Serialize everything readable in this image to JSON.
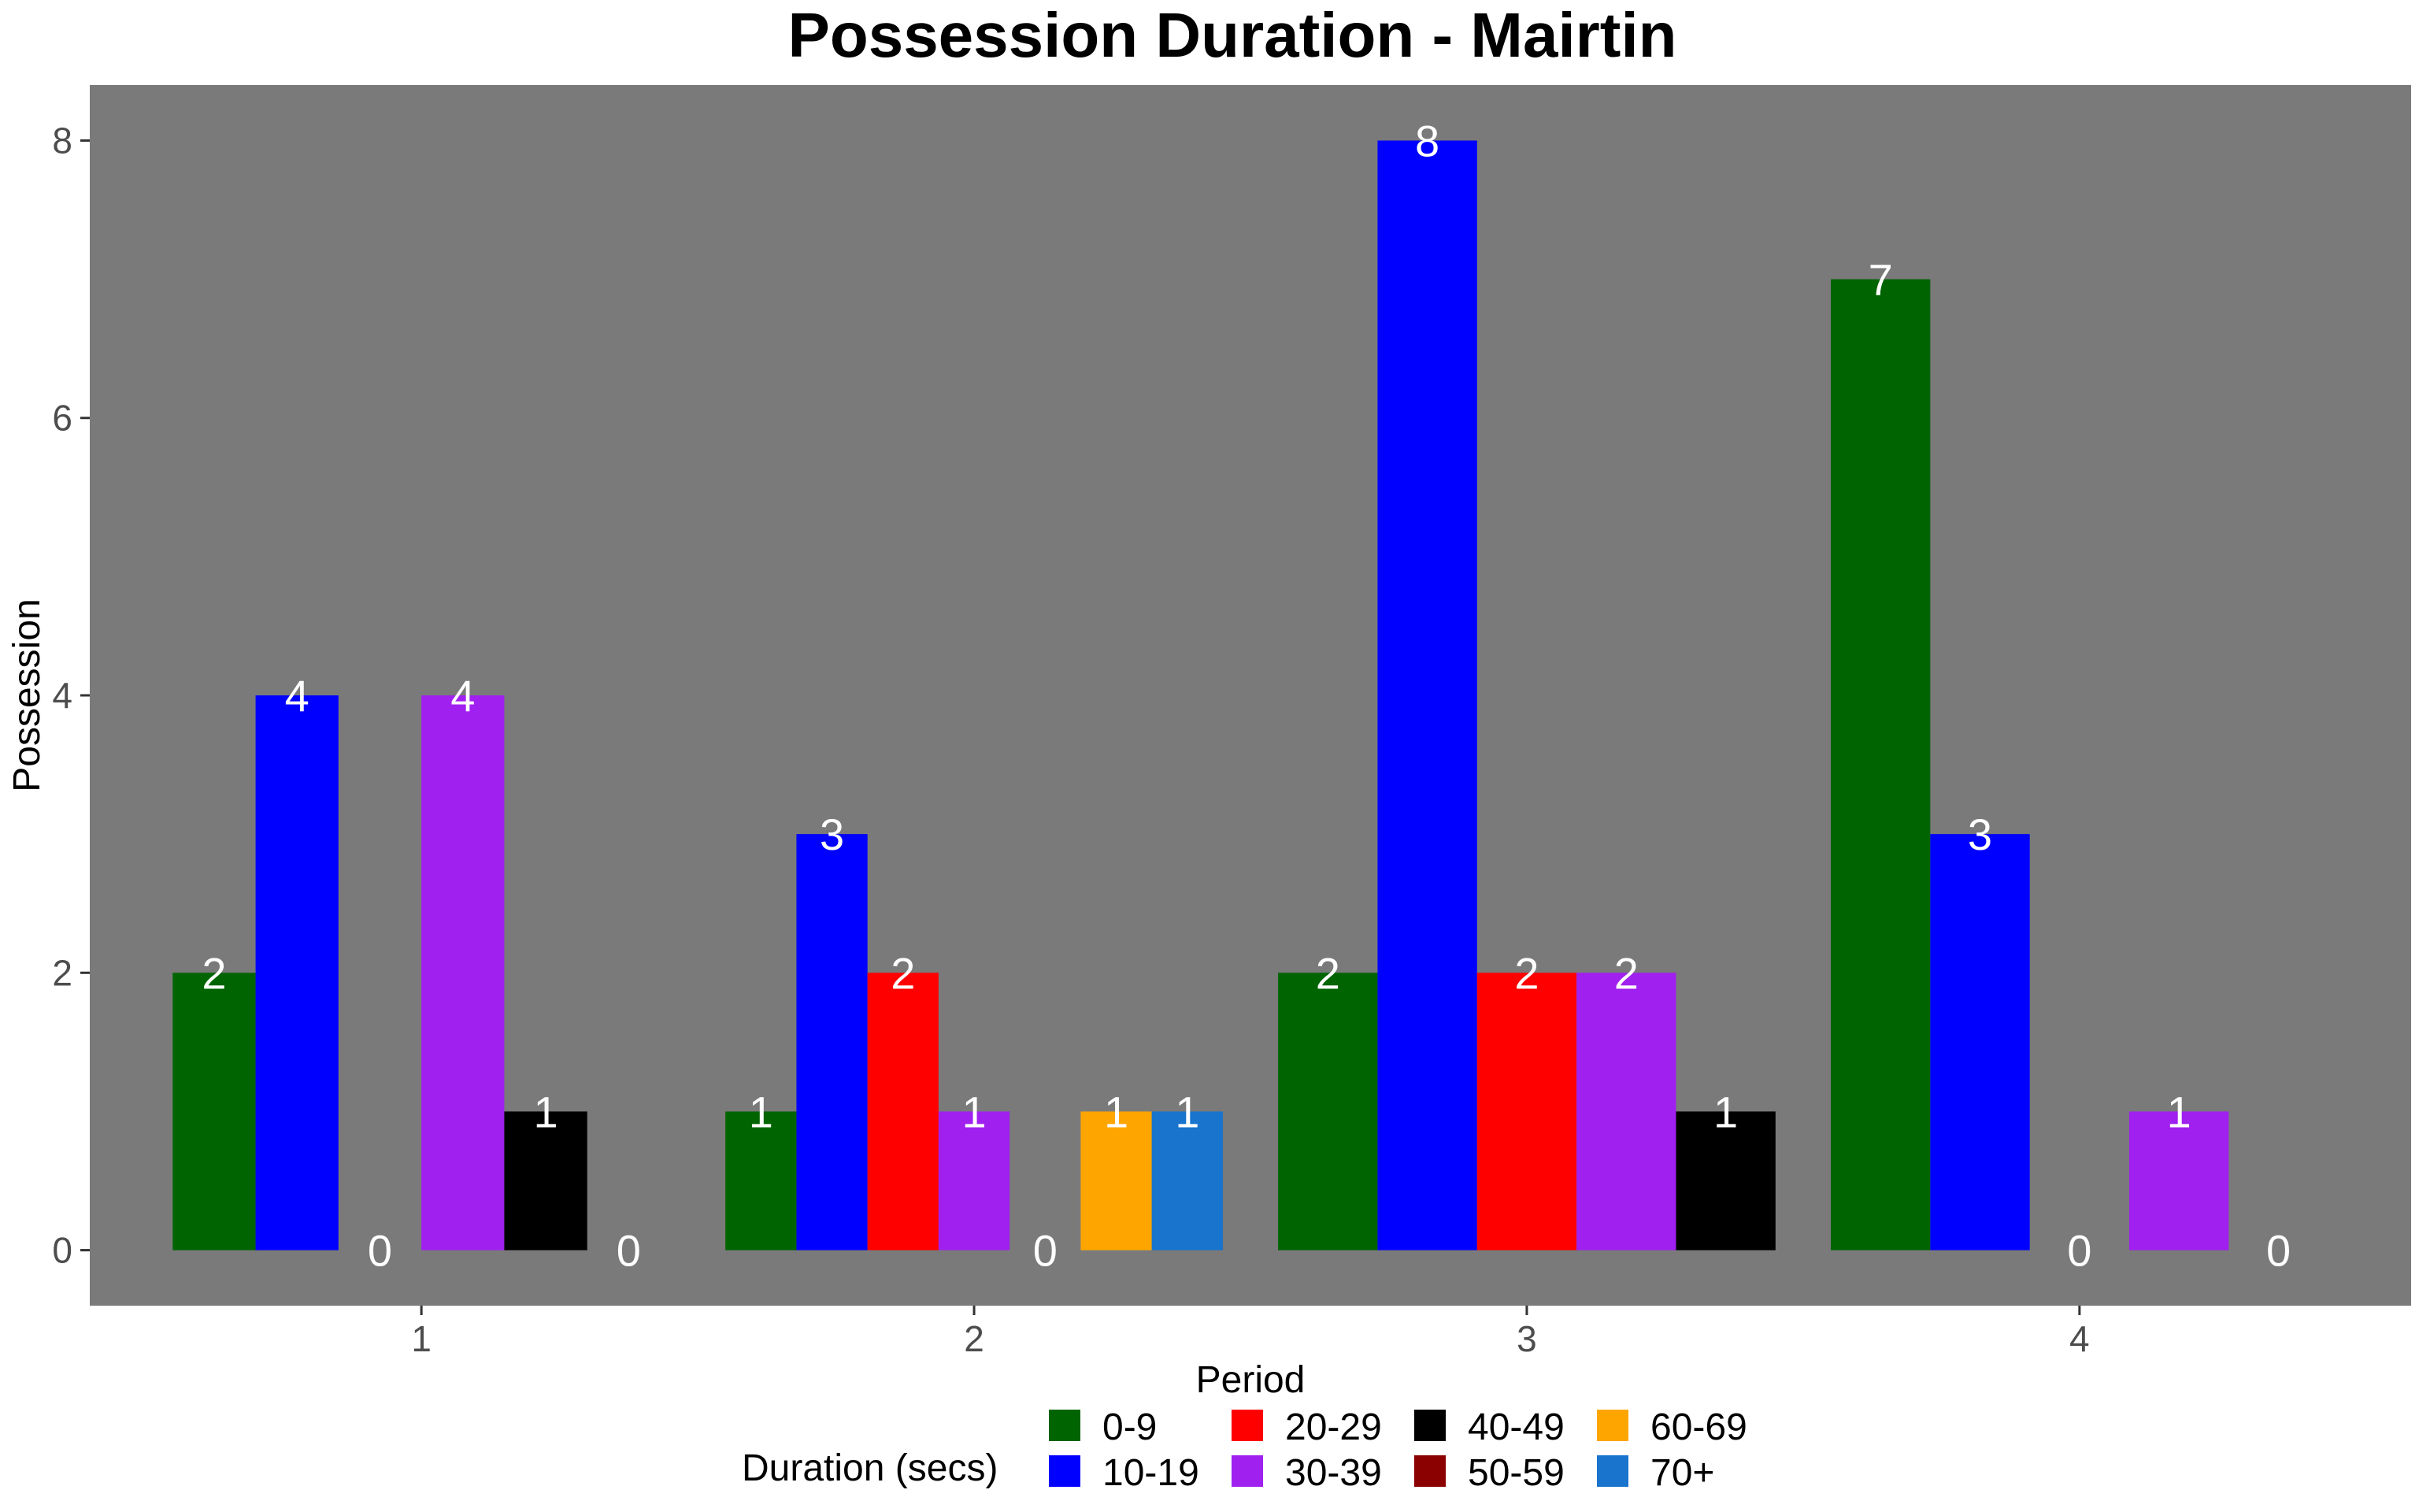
{
  "chart_data": {
    "type": "bar",
    "title": "Possession Duration - Mairtin",
    "xlabel": "Period",
    "ylabel": "Possession",
    "categories": [
      "1",
      "2",
      "3",
      "4"
    ],
    "ylim": [
      -0.4,
      8.4
    ],
    "yticks": [
      "0",
      "2",
      "4",
      "6",
      "8"
    ],
    "grid": false,
    "panel_background": "#7a7a7a",
    "legend": {
      "title": "Duration (secs)",
      "position": "bottom",
      "columns": [
        [
          {
            "name": "0-9",
            "color": "#006400"
          },
          {
            "name": "10-19",
            "color": "#0000ff"
          }
        ],
        [
          {
            "name": "20-29",
            "color": "#ff0000"
          },
          {
            "name": "30-39",
            "color": "#a020f0"
          }
        ],
        [
          {
            "name": "40-49",
            "color": "#000000"
          },
          {
            "name": "50-59",
            "color": "#8b0000"
          }
        ],
        [
          {
            "name": "60-69",
            "color": "#ffa500"
          },
          {
            "name": "70+",
            "color": "#1874cd"
          }
        ]
      ]
    },
    "groups": [
      {
        "category": "1",
        "bars": [
          {
            "series": "0-9",
            "value": 2,
            "label": "2"
          },
          {
            "series": "10-19",
            "value": 4,
            "label": "4"
          },
          {
            "series": "20-29",
            "value": 0,
            "label": "0"
          },
          {
            "series": "30-39",
            "value": 4,
            "label": "4"
          },
          {
            "series": "40-49",
            "value": 1,
            "label": "1"
          },
          {
            "series": "50-59",
            "value": 0,
            "label": "0"
          }
        ]
      },
      {
        "category": "2",
        "bars": [
          {
            "series": "0-9",
            "value": 1,
            "label": "1"
          },
          {
            "series": "10-19",
            "value": 3,
            "label": "3"
          },
          {
            "series": "20-29",
            "value": 2,
            "label": "2"
          },
          {
            "series": "30-39",
            "value": 1,
            "label": "1"
          },
          {
            "series": "50-59",
            "value": 0,
            "label": "0"
          },
          {
            "series": "60-69",
            "value": 1,
            "label": "1"
          },
          {
            "series": "70+",
            "value": 1,
            "label": "1"
          }
        ]
      },
      {
        "category": "3",
        "bars": [
          {
            "series": "0-9",
            "value": 2,
            "label": "2"
          },
          {
            "series": "10-19",
            "value": 8,
            "label": "8"
          },
          {
            "series": "20-29",
            "value": 2,
            "label": "2"
          },
          {
            "series": "30-39",
            "value": 2,
            "label": "2"
          },
          {
            "series": "40-49",
            "value": 1,
            "label": "1"
          }
        ]
      },
      {
        "category": "4",
        "bars": [
          {
            "series": "0-9",
            "value": 7,
            "label": "7"
          },
          {
            "series": "10-19",
            "value": 3,
            "label": "3"
          },
          {
            "series": "20-29",
            "value": 0,
            "label": "0"
          },
          {
            "series": "30-39",
            "value": 1,
            "label": "1"
          },
          {
            "series": "40-49",
            "value": 0,
            "label": "0"
          }
        ]
      }
    ]
  }
}
